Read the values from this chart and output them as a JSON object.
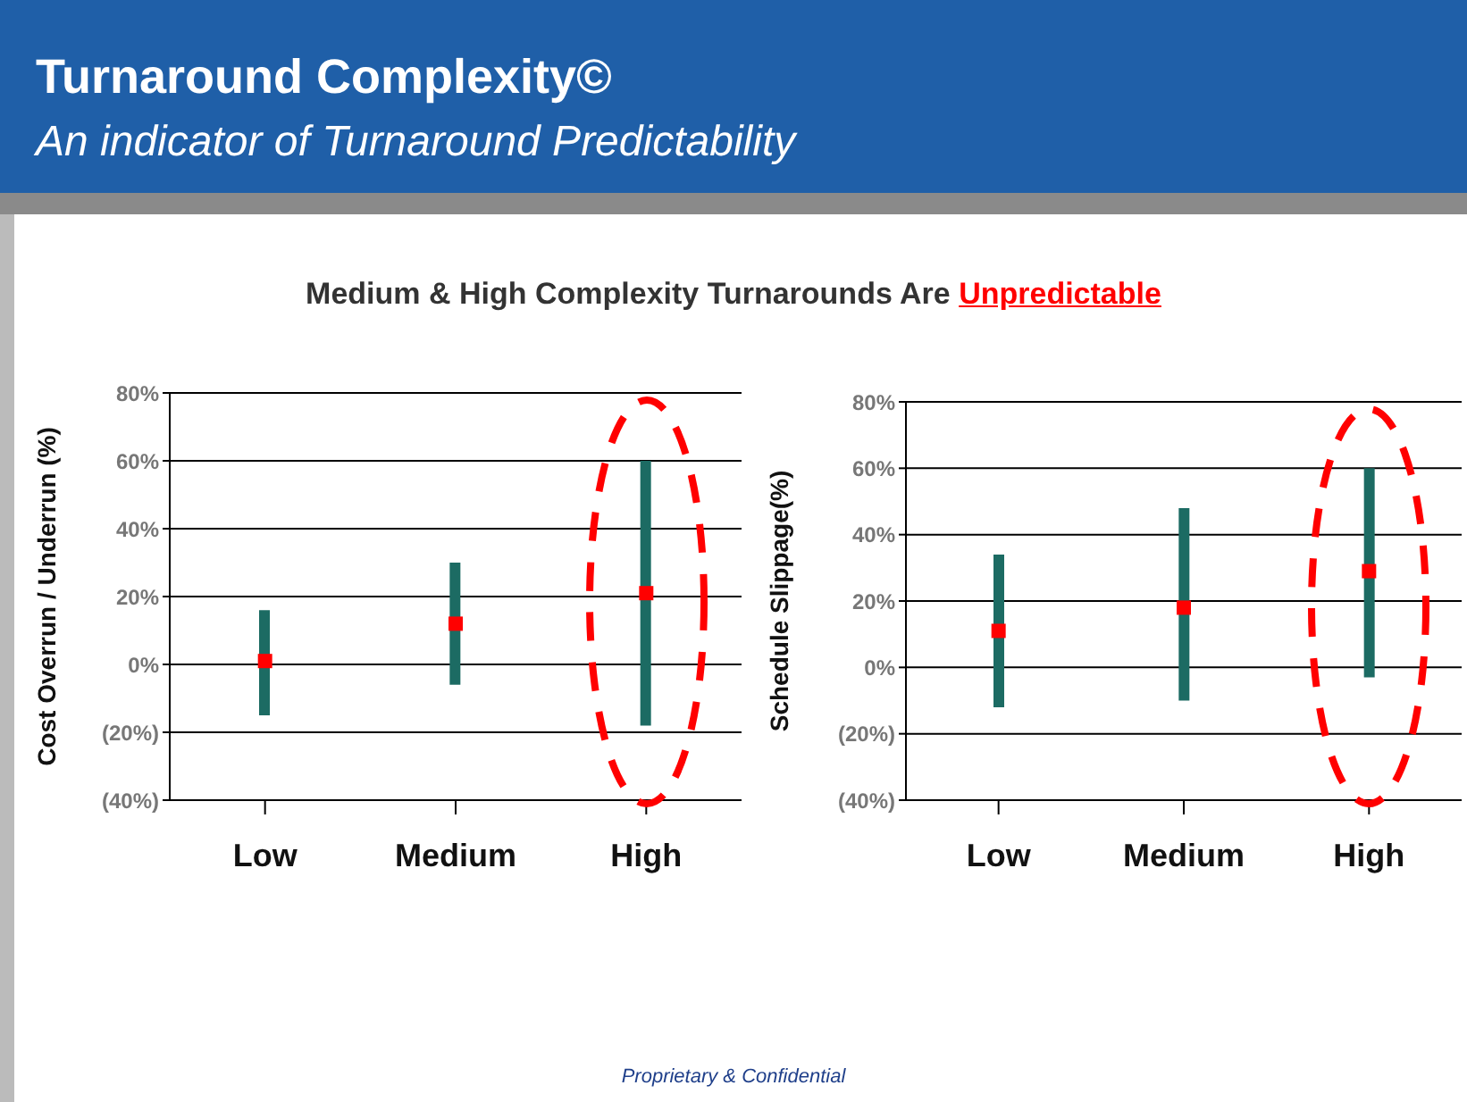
{
  "chart_data": [
    {
      "type": "bar",
      "title": "Turnaround Complexity©",
      "subtitle": "An indicator of Turnaround Predictability",
      "annotations": [
        "Medium & High Complexity Turnarounds Are Unpredictable",
        "Proprietary & Confidential"
      ],
      "ylabel": "Cost Overrun / Underrun (%)",
      "categories": [
        "Low",
        "Medium",
        "High"
      ],
      "series": [
        {
          "type": "bar",
          "color": "#1c6b63",
          "base": [
            -15,
            -6,
            -18
          ],
          "values": [
            31,
            36,
            78
          ]
        },
        {
          "type": "scatter",
          "color": "#ff0000",
          "marker": "square",
          "x": [
            "Low",
            "Medium",
            "High"
          ],
          "values": [
            1,
            12,
            21
          ]
        }
      ],
      "ylim": [
        -40,
        80
      ],
      "yticks": [
        {
          "value": -40,
          "label": "(40%)"
        },
        {
          "value": -20,
          "label": "(20%)"
        },
        {
          "value": 0,
          "label": "0%"
        },
        {
          "value": 20,
          "label": "20%"
        },
        {
          "value": 40,
          "label": "40%"
        },
        {
          "value": 60,
          "label": "60%"
        },
        {
          "value": 80,
          "label": "80%"
        }
      ],
      "grid": "y"
    },
    {
      "type": "bar",
      "ylabel": "Schedule Slippage(%)",
      "categories": [
        "Low",
        "Medium",
        "High"
      ],
      "series": [
        {
          "type": "bar",
          "color": "#1c6b63",
          "base": [
            -12,
            -10,
            -3
          ],
          "values": [
            46,
            58,
            63
          ]
        },
        {
          "type": "scatter",
          "color": "#ff0000",
          "marker": "square",
          "x": [
            "Low",
            "Medium",
            "High"
          ],
          "values": [
            11,
            18,
            29
          ]
        }
      ],
      "ylim": [
        -40,
        80
      ],
      "yticks": [
        {
          "value": -40,
          "label": "(40%)"
        },
        {
          "value": -20,
          "label": "(20%)"
        },
        {
          "value": 0,
          "label": "0%"
        },
        {
          "value": 20,
          "label": "20%"
        },
        {
          "value": 40,
          "label": "40%"
        },
        {
          "value": 60,
          "label": "60%"
        },
        {
          "value": 80,
          "label": "80%"
        }
      ],
      "grid": "y"
    }
  ]
}
